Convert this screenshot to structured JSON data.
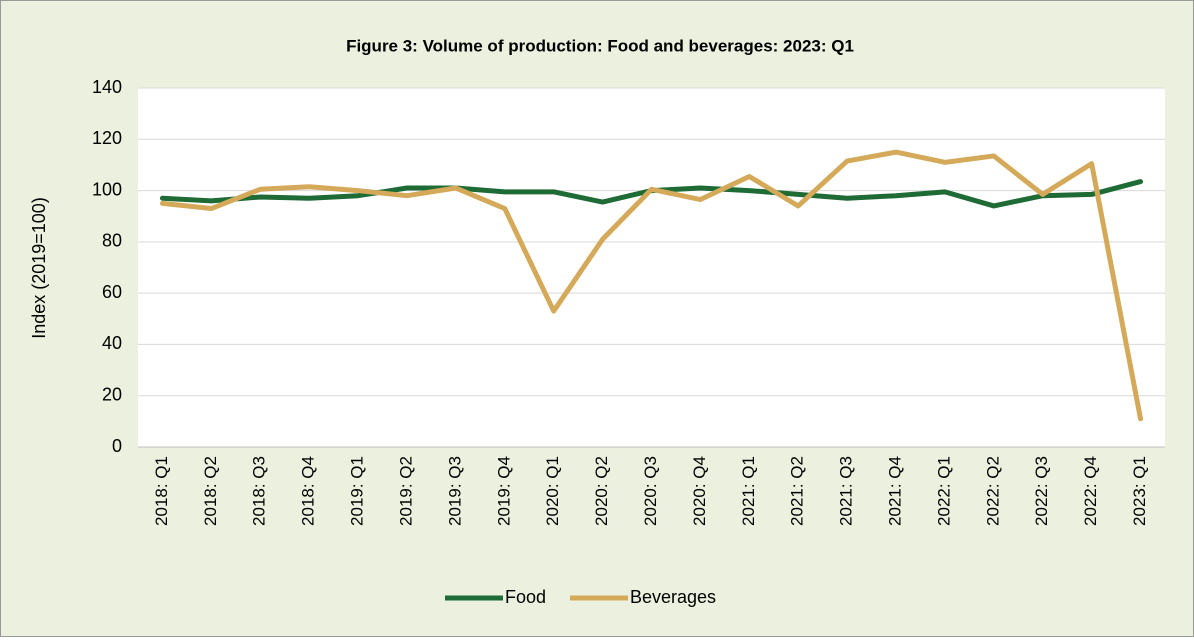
{
  "chart_data": {
    "type": "line",
    "title": "Figure 3: Volume of production: Food and beverages: 2023: Q1",
    "y_label": "Index (2019=100)",
    "categories": [
      "2018: Q1",
      "2018: Q2",
      "2018: Q3",
      "2018: Q4",
      "2019: Q1",
      "2019: Q2",
      "2019: Q3",
      "2019: Q4",
      "2020: Q1",
      "2020: Q2",
      "2020: Q3",
      "2020: Q4",
      "2021: Q1",
      "2021: Q2",
      "2021: Q3",
      "2021: Q4",
      "2022: Q1",
      "2022: Q2",
      "2022: Q3",
      "2022: Q4",
      "2023: Q1"
    ],
    "series": [
      {
        "name": "Food",
        "color": "#1e6b35",
        "values": [
          97,
          96,
          97.5,
          97,
          98,
          101,
          101,
          99.5,
          99.5,
          95.5,
          100,
          101,
          100,
          98.5,
          97,
          98,
          99.5,
          94,
          98,
          98.5,
          103.5
        ]
      },
      {
        "name": "Beverages",
        "color": "#d4aa5a",
        "values": [
          95,
          93,
          100.5,
          101.5,
          100,
          98,
          101,
          93,
          53,
          81,
          100.5,
          96.5,
          105.5,
          94,
          111.5,
          115,
          111,
          113.5,
          98.5,
          110.5,
          11
        ]
      }
    ],
    "ylim": [
      0,
      140
    ],
    "yticks": [
      0,
      20,
      40,
      60,
      80,
      100,
      120,
      140
    ],
    "grid": true,
    "legend": "bottom"
  }
}
